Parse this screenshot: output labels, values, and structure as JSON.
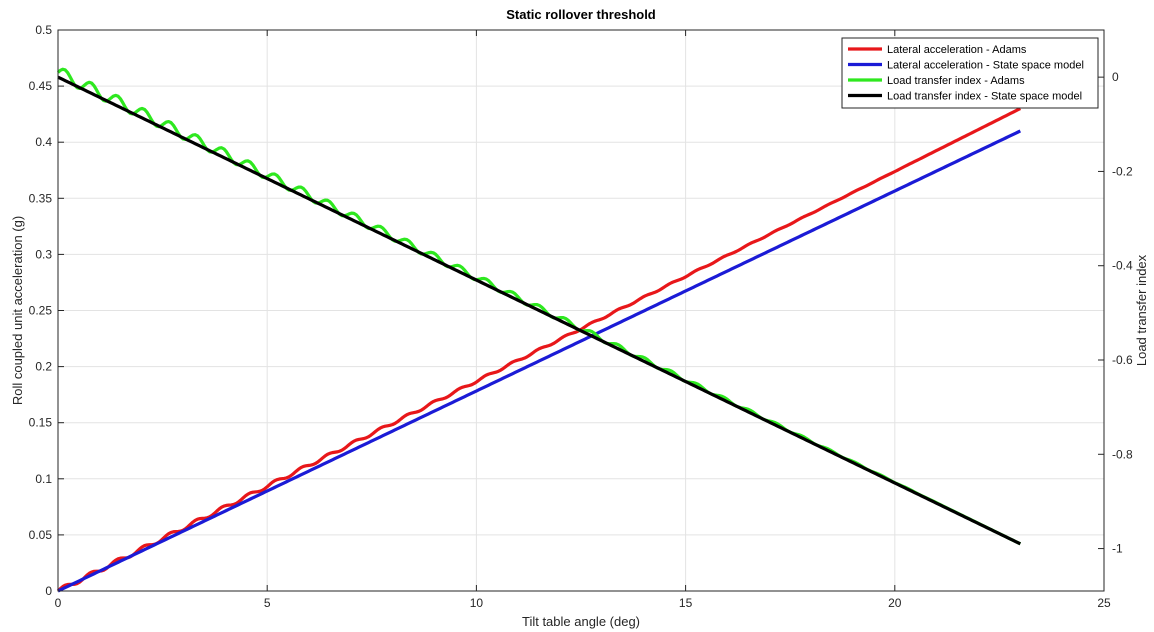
{
  "chart_data": {
    "type": "line",
    "title": "Static rollover threshold",
    "xlabel": "Tilt table angle (deg)",
    "ylabel": "Roll coupled unit acceleration (g)",
    "y2label": "Load transfer index",
    "xlim": [
      0,
      25
    ],
    "ylim": [
      0,
      0.5
    ],
    "y2lim": [
      -1.09,
      0.1
    ],
    "xticks": [
      0,
      5,
      10,
      15,
      20,
      25
    ],
    "yticks": [
      0,
      0.05,
      0.1,
      0.15,
      0.2,
      0.25,
      0.3,
      0.35,
      0.4,
      0.45,
      0.5
    ],
    "y2ticks": [
      -1,
      -0.8,
      -0.6,
      -0.4,
      -0.2,
      0
    ],
    "grid": true,
    "legend_position": "top-right",
    "series": [
      {
        "name": "Lateral acceleration - Adams",
        "color": "#e8171a",
        "axis": "left",
        "x": [
          0,
          23
        ],
        "y": [
          0,
          0.43
        ],
        "oscillation": {
          "amplitude": 0.002,
          "period_deg": 0.63,
          "decay_to": 0
        }
      },
      {
        "name": "Lateral acceleration - State space model",
        "color": "#1b1bd6",
        "axis": "left",
        "x": [
          0,
          23
        ],
        "y": [
          0,
          0.41
        ]
      },
      {
        "name": "Load transfer index - Adams",
        "color": "#2ee81f",
        "axis": "right",
        "x": [
          0,
          23
        ],
        "y": [
          0.01,
          -0.99
        ],
        "oscillation": {
          "amplitude": 0.013,
          "period_deg": 0.63,
          "decay_to": 0
        }
      },
      {
        "name": "Load transfer index - State space model",
        "color": "#000000",
        "axis": "right",
        "x": [
          0,
          23
        ],
        "y": [
          0,
          -0.99
        ]
      }
    ]
  }
}
